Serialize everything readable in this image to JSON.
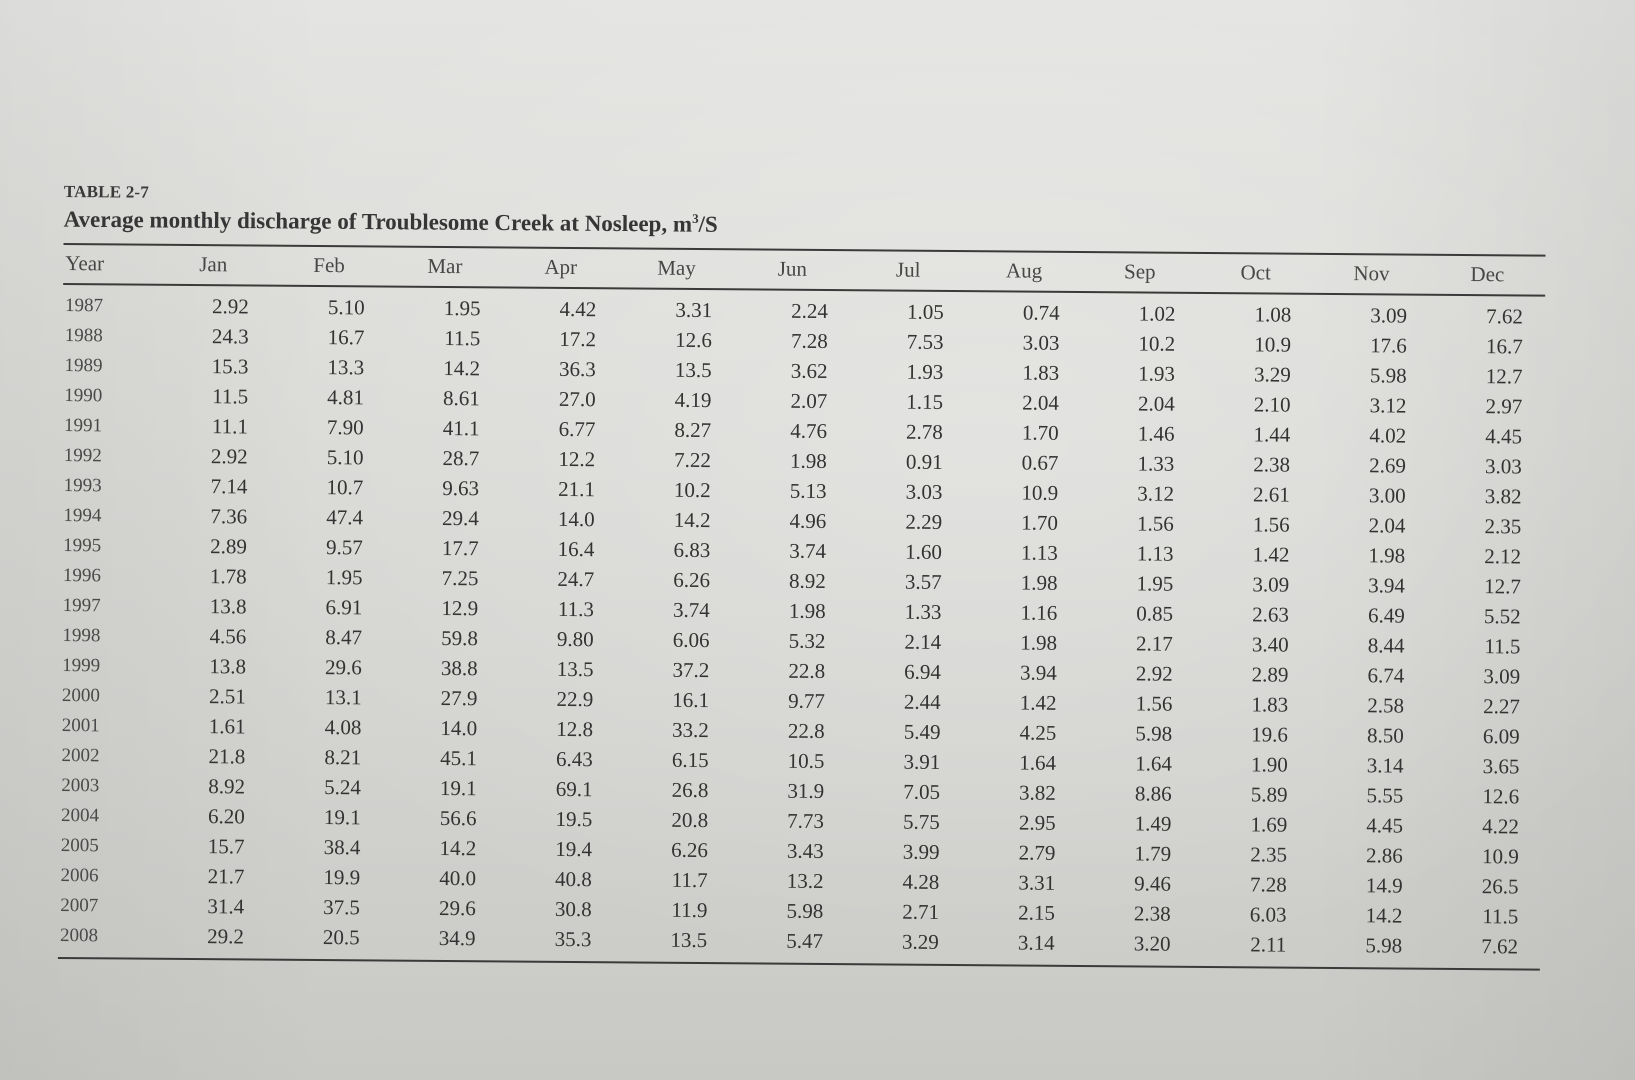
{
  "table": {
    "label": "TABLE 2-7",
    "caption_text": "Average monthly discharge of Troublesome Creek at Nosleep, m",
    "caption_sup": "3",
    "caption_suffix": "/S",
    "columns": [
      "Year",
      "Jan",
      "Feb",
      "Mar",
      "Apr",
      "May",
      "Jun",
      "Jul",
      "Aug",
      "Sep",
      "Oct",
      "Nov",
      "Dec"
    ],
    "rows": [
      [
        "1987",
        "2.92",
        "5.10",
        "1.95",
        "4.42",
        "3.31",
        "2.24",
        "1.05",
        "0.74",
        "1.02",
        "1.08",
        "3.09",
        "7.62"
      ],
      [
        "1988",
        "24.3",
        "16.7",
        "11.5",
        "17.2",
        "12.6",
        "7.28",
        "7.53",
        "3.03",
        "10.2",
        "10.9",
        "17.6",
        "16.7"
      ],
      [
        "1989",
        "15.3",
        "13.3",
        "14.2",
        "36.3",
        "13.5",
        "3.62",
        "1.93",
        "1.83",
        "1.93",
        "3.29",
        "5.98",
        "12.7"
      ],
      [
        "1990",
        "11.5",
        "4.81",
        "8.61",
        "27.0",
        "4.19",
        "2.07",
        "1.15",
        "2.04",
        "2.04",
        "2.10",
        "3.12",
        "2.97"
      ],
      [
        "1991",
        "11.1",
        "7.90",
        "41.1",
        "6.77",
        "8.27",
        "4.76",
        "2.78",
        "1.70",
        "1.46",
        "1.44",
        "4.02",
        "4.45"
      ],
      [
        "1992",
        "2.92",
        "5.10",
        "28.7",
        "12.2",
        "7.22",
        "1.98",
        "0.91",
        "0.67",
        "1.33",
        "2.38",
        "2.69",
        "3.03"
      ],
      [
        "1993",
        "7.14",
        "10.7",
        "9.63",
        "21.1",
        "10.2",
        "5.13",
        "3.03",
        "10.9",
        "3.12",
        "2.61",
        "3.00",
        "3.82"
      ],
      [
        "1994",
        "7.36",
        "47.4",
        "29.4",
        "14.0",
        "14.2",
        "4.96",
        "2.29",
        "1.70",
        "1.56",
        "1.56",
        "2.04",
        "2.35"
      ],
      [
        "1995",
        "2.89",
        "9.57",
        "17.7",
        "16.4",
        "6.83",
        "3.74",
        "1.60",
        "1.13",
        "1.13",
        "1.42",
        "1.98",
        "2.12"
      ],
      [
        "1996",
        "1.78",
        "1.95",
        "7.25",
        "24.7",
        "6.26",
        "8.92",
        "3.57",
        "1.98",
        "1.95",
        "3.09",
        "3.94",
        "12.7"
      ],
      [
        "1997",
        "13.8",
        "6.91",
        "12.9",
        "11.3",
        "3.74",
        "1.98",
        "1.33",
        "1.16",
        "0.85",
        "2.63",
        "6.49",
        "5.52"
      ],
      [
        "1998",
        "4.56",
        "8.47",
        "59.8",
        "9.80",
        "6.06",
        "5.32",
        "2.14",
        "1.98",
        "2.17",
        "3.40",
        "8.44",
        "11.5"
      ],
      [
        "1999",
        "13.8",
        "29.6",
        "38.8",
        "13.5",
        "37.2",
        "22.8",
        "6.94",
        "3.94",
        "2.92",
        "2.89",
        "6.74",
        "3.09"
      ],
      [
        "2000",
        "2.51",
        "13.1",
        "27.9",
        "22.9",
        "16.1",
        "9.77",
        "2.44",
        "1.42",
        "1.56",
        "1.83",
        "2.58",
        "2.27"
      ],
      [
        "2001",
        "1.61",
        "4.08",
        "14.0",
        "12.8",
        "33.2",
        "22.8",
        "5.49",
        "4.25",
        "5.98",
        "19.6",
        "8.50",
        "6.09"
      ],
      [
        "2002",
        "21.8",
        "8.21",
        "45.1",
        "6.43",
        "6.15",
        "10.5",
        "3.91",
        "1.64",
        "1.64",
        "1.90",
        "3.14",
        "3.65"
      ],
      [
        "2003",
        "8.92",
        "5.24",
        "19.1",
        "69.1",
        "26.8",
        "31.9",
        "7.05",
        "3.82",
        "8.86",
        "5.89",
        "5.55",
        "12.6"
      ],
      [
        "2004",
        "6.20",
        "19.1",
        "56.6",
        "19.5",
        "20.8",
        "7.73",
        "5.75",
        "2.95",
        "1.49",
        "1.69",
        "4.45",
        "4.22"
      ],
      [
        "2005",
        "15.7",
        "38.4",
        "14.2",
        "19.4",
        "6.26",
        "3.43",
        "3.99",
        "2.79",
        "1.79",
        "2.35",
        "2.86",
        "10.9"
      ],
      [
        "2006",
        "21.7",
        "19.9",
        "40.0",
        "40.8",
        "11.7",
        "13.2",
        "4.28",
        "3.31",
        "9.46",
        "7.28",
        "14.9",
        "26.5"
      ],
      [
        "2007",
        "31.4",
        "37.5",
        "29.6",
        "30.8",
        "11.9",
        "5.98",
        "2.71",
        "2.15",
        "2.38",
        "6.03",
        "14.2",
        "11.5"
      ],
      [
        "2008",
        "29.2",
        "20.5",
        "34.9",
        "35.3",
        "13.5",
        "5.47",
        "3.29",
        "3.14",
        "3.20",
        "2.11",
        "5.98",
        "7.62"
      ]
    ]
  }
}
